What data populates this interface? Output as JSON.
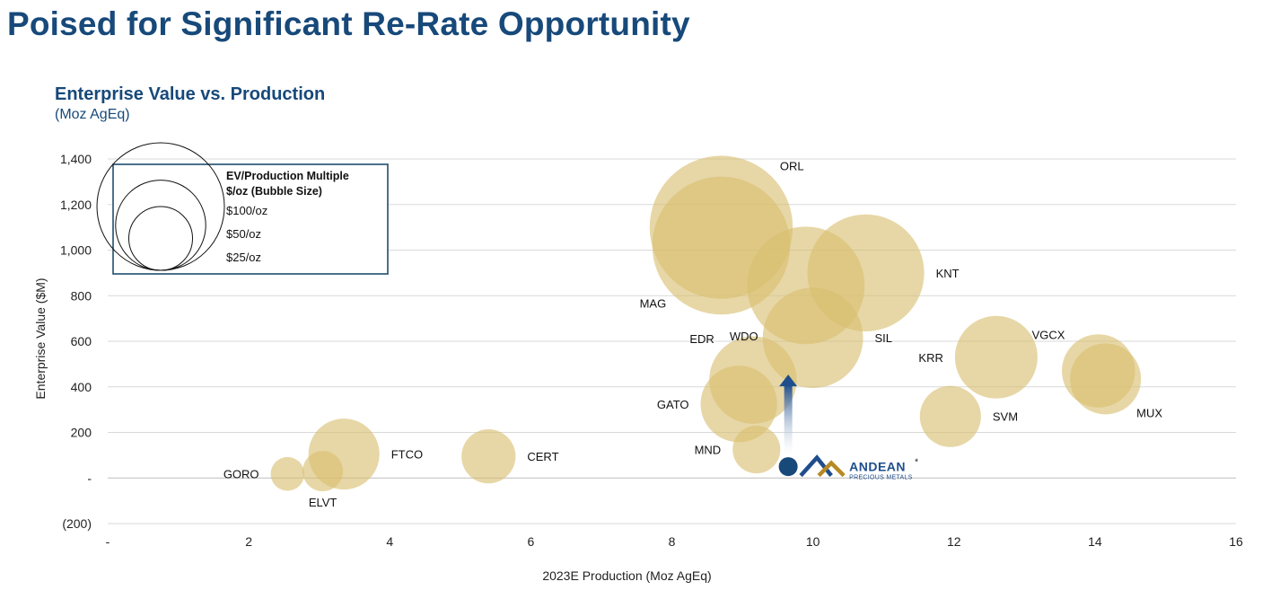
{
  "page": {
    "title": "Poised for Significant Re-Rate Opportunity"
  },
  "chart_data": {
    "type": "bubble",
    "title": "Enterprise Value vs. Production",
    "subtitle": "(Moz AgEq)",
    "xlabel": "2023E Production (Moz AgEq)",
    "ylabel": "Enterprise Value ($M)",
    "xlim": [
      0,
      16
    ],
    "ylim": [
      -200,
      1400
    ],
    "x_ticks": [
      {
        "value": 0,
        "label": "-"
      },
      {
        "value": 2,
        "label": "2"
      },
      {
        "value": 4,
        "label": "4"
      },
      {
        "value": 6,
        "label": "6"
      },
      {
        "value": 8,
        "label": "8"
      },
      {
        "value": 10,
        "label": "10"
      },
      {
        "value": 12,
        "label": "12"
      },
      {
        "value": 14,
        "label": "14"
      },
      {
        "value": 16,
        "label": "16"
      }
    ],
    "y_ticks": [
      {
        "value": 1400,
        "label": "1,400"
      },
      {
        "value": 1200,
        "label": "1,200"
      },
      {
        "value": 1000,
        "label": "1,000"
      },
      {
        "value": 800,
        "label": "800"
      },
      {
        "value": 600,
        "label": "600"
      },
      {
        "value": 400,
        "label": "400"
      },
      {
        "value": 200,
        "label": "200"
      },
      {
        "value": 0,
        "label": "-"
      },
      {
        "value": -200,
        "label": "(200)"
      }
    ],
    "gridlines": true,
    "bubble_color": "#d9bf6f",
    "highlight_color": "#17497a",
    "size_metric": "EV/Production Multiple $/oz",
    "points": [
      {
        "name": "GORO",
        "x": 2.55,
        "y": 18,
        "multiple": 7,
        "label_pos": "left"
      },
      {
        "name": "ELVT",
        "x": 3.05,
        "y": 30,
        "multiple": 10,
        "label_pos": "below"
      },
      {
        "name": "FTCO",
        "x": 3.35,
        "y": 105,
        "multiple": 31,
        "label_pos": "right"
      },
      {
        "name": "CERT",
        "x": 5.4,
        "y": 95,
        "multiple": 18,
        "label_pos": "right"
      },
      {
        "name": "MND",
        "x": 9.2,
        "y": 125,
        "multiple": 14,
        "label_pos": "left"
      },
      {
        "name": "GATO",
        "x": 8.95,
        "y": 325,
        "multiple": 36,
        "label_pos": "left"
      },
      {
        "name": "EDR",
        "x": 9.15,
        "y": 430,
        "multiple": 47,
        "label_pos": "upper-left"
      },
      {
        "name": "SIL",
        "x": 10.0,
        "y": 615,
        "multiple": 62,
        "label_pos": "right"
      },
      {
        "name": "WDO",
        "x": 9.9,
        "y": 845,
        "multiple": 85,
        "label_pos": "lower-left"
      },
      {
        "name": "KNT",
        "x": 10.75,
        "y": 900,
        "multiple": 84,
        "label_pos": "right"
      },
      {
        "name": "ORL",
        "x": 8.7,
        "y": 1100,
        "multiple": 126,
        "label_pos": "upper-right"
      },
      {
        "name": "MAG",
        "x": 8.7,
        "y": 1020,
        "multiple": 117,
        "label_pos": "lower-left"
      },
      {
        "name": "KRR",
        "x": 12.6,
        "y": 530,
        "multiple": 42,
        "label_pos": "left"
      },
      {
        "name": "SVM",
        "x": 11.95,
        "y": 270,
        "multiple": 23,
        "label_pos": "right"
      },
      {
        "name": "VGCX",
        "x": 14.05,
        "y": 470,
        "multiple": 33,
        "label_pos": "upper-left"
      },
      {
        "name": "MUX",
        "x": 14.15,
        "y": 435,
        "multiple": 31,
        "label_pos": "lower-right"
      }
    ],
    "highlight": {
      "name": "ANDEAN",
      "sub": "PRECIOUS METALS",
      "marker": "*",
      "x": 9.65,
      "y": 50,
      "arrow_to_y": 450
    },
    "legend": {
      "title_line1": "EV/Production Multiple",
      "title_line2": "$/oz (Bubble Size)",
      "items": [
        {
          "label": "$100/oz",
          "multiple": 100
        },
        {
          "label": "$50/oz",
          "multiple": 50
        },
        {
          "label": "$25/oz",
          "multiple": 25
        }
      ],
      "position": "top-left"
    }
  }
}
